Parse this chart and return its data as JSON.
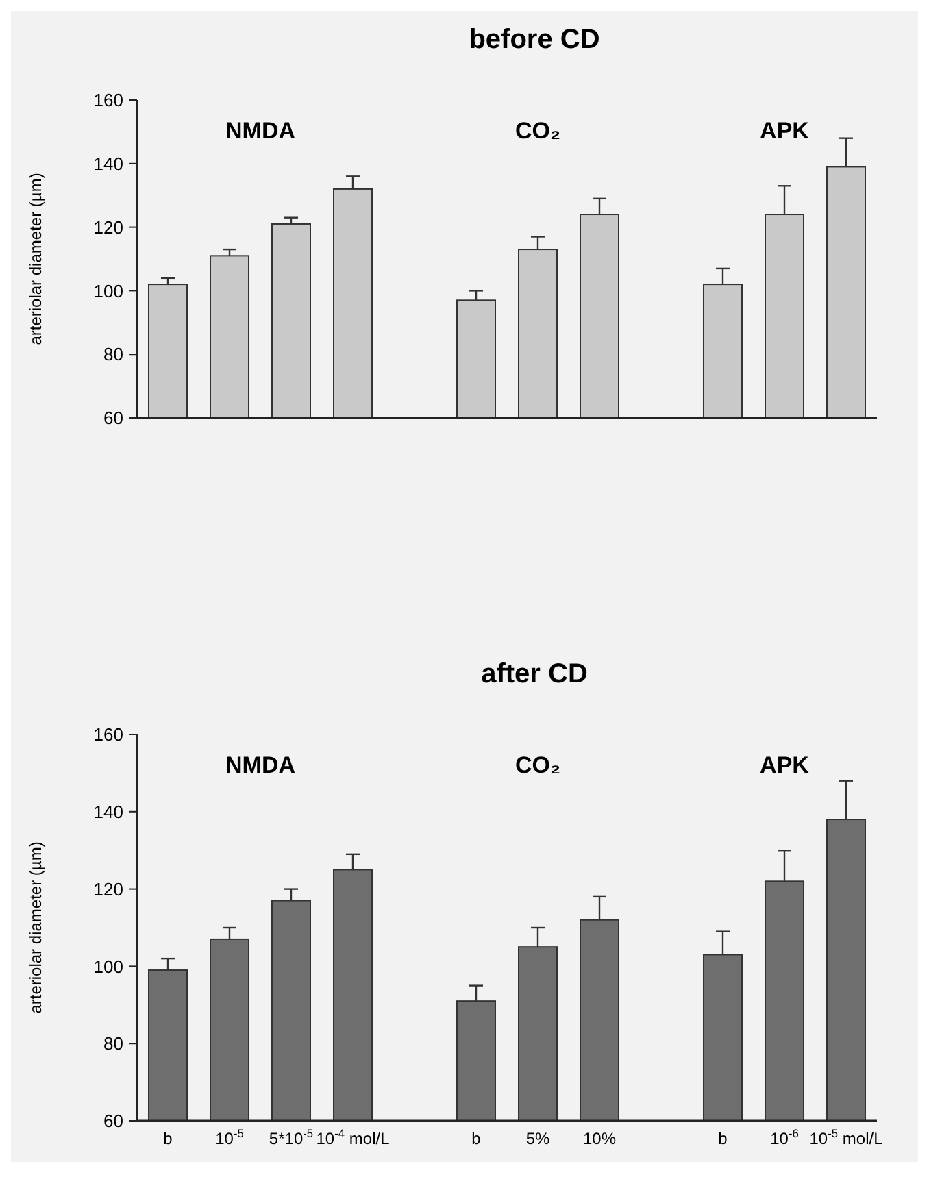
{
  "chart_data": [
    {
      "type": "bar",
      "title": "before CD",
      "ylabel": "arteriolar diameter (µm)",
      "categories": [
        null,
        null,
        null,
        null,
        null,
        null,
        null,
        null,
        null,
        null,
        null,
        null
      ],
      "values": [
        102,
        111,
        121,
        132,
        null,
        97,
        113,
        124,
        null,
        102,
        124,
        139
      ],
      "errors": [
        [
          102,
          104
        ],
        [
          111,
          113
        ],
        [
          121,
          123
        ],
        [
          132,
          136
        ],
        null,
        [
          97,
          100
        ],
        [
          113,
          117
        ],
        [
          124,
          129
        ],
        null,
        [
          102,
          107
        ],
        [
          124,
          133
        ],
        [
          139,
          148
        ]
      ],
      "color": "#c9c9c9",
      "ylim": [
        60,
        160
      ],
      "yticks": [
        60,
        80,
        100,
        120,
        140,
        160
      ],
      "tick_labels": "y",
      "annotations": [
        "NMDA",
        "CO₂",
        "APK"
      ]
    },
    {
      "type": "bar",
      "title": "after CD",
      "ylabel": "arteriolar diameter (µm)",
      "categories": [
        "b",
        "10$^{-5}$",
        "5*10$^{-5}$",
        "10$^{-4}$ mol/L",
        null,
        "b",
        "5%",
        "10%",
        null,
        "b",
        "10$^{-6}$",
        "10$^{-5}$ mol/L"
      ],
      "values": [
        99,
        107,
        117,
        125,
        null,
        91,
        105,
        112,
        null,
        103,
        122,
        138
      ],
      "errors": [
        [
          99,
          102
        ],
        [
          107,
          110
        ],
        [
          117,
          120
        ],
        [
          125,
          129
        ],
        null,
        [
          91,
          95
        ],
        [
          105,
          110
        ],
        [
          112,
          118
        ],
        null,
        [
          103,
          109
        ],
        [
          122,
          130
        ],
        [
          138,
          148
        ]
      ],
      "color": "#6e6e6e",
      "ylim": [
        60,
        160
      ],
      "yticks": [
        60,
        80,
        100,
        120,
        140,
        160
      ],
      "annotations": [
        "NMDA",
        "CO₂",
        "APK"
      ]
    }
  ]
}
